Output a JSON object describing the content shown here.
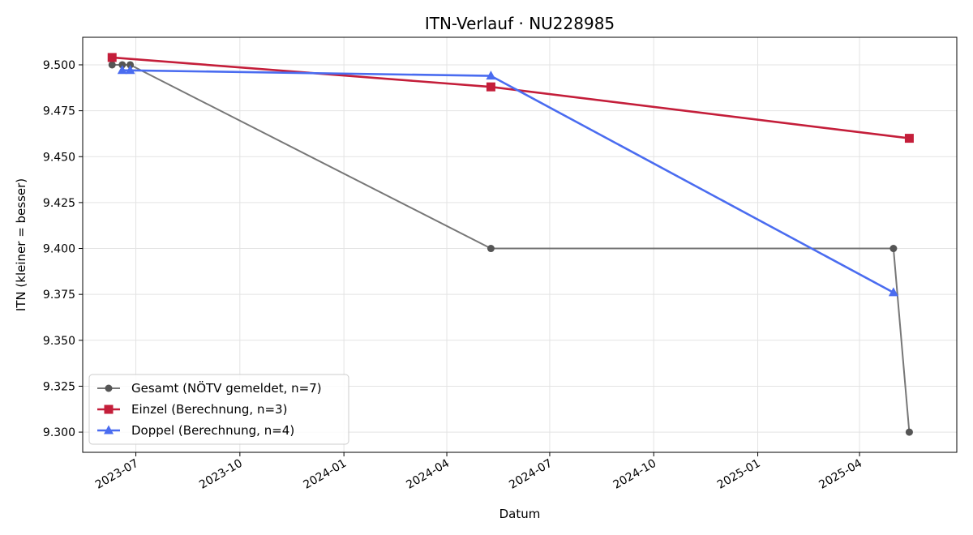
{
  "chart_data": {
    "type": "line",
    "title": "ITN-Verlauf · NU228985",
    "xlabel": "Datum",
    "ylabel": "ITN  (kleiner = besser)",
    "x_type": "date",
    "xlim": [
      "2023-05-15",
      "2025-06-26"
    ],
    "ylim": [
      9.289,
      9.515
    ],
    "x_ticks": [
      "2023-07",
      "2023-10",
      "2024-01",
      "2024-04",
      "2024-07",
      "2024-10",
      "2025-01",
      "2025-04"
    ],
    "y_ticks": [
      "9.300",
      "9.325",
      "9.350",
      "9.375",
      "9.400",
      "9.425",
      "9.450",
      "9.475",
      "9.500"
    ],
    "grid": true,
    "legend_position": "lower-left",
    "series": [
      {
        "name": "Gesamt (NÖTV gemeldet, n=7)",
        "color": "#555555",
        "marker": "circle",
        "points": [
          {
            "x": "2023-06-10",
            "y": 9.5
          },
          {
            "x": "2023-06-19",
            "y": 9.5
          },
          {
            "x": "2023-06-26",
            "y": 9.5
          },
          {
            "x": "2024-05-10",
            "y": 9.4
          },
          {
            "x": "2025-05-01",
            "y": 9.4
          },
          {
            "x": "2025-05-15",
            "y": 9.3
          }
        ]
      },
      {
        "name": "Einzel (Berechnung, n=3)",
        "color": "#c41e3a",
        "marker": "square",
        "points": [
          {
            "x": "2023-06-10",
            "y": 9.504
          },
          {
            "x": "2024-05-10",
            "y": 9.488
          },
          {
            "x": "2025-05-15",
            "y": 9.46
          }
        ]
      },
      {
        "name": "Doppel (Berechnung, n=4)",
        "color": "#4a6cf0",
        "marker": "triangle",
        "points": [
          {
            "x": "2023-06-19",
            "y": 9.497
          },
          {
            "x": "2023-06-26",
            "y": 9.497
          },
          {
            "x": "2024-05-10",
            "y": 9.494
          },
          {
            "x": "2025-05-01",
            "y": 9.376
          }
        ]
      }
    ]
  }
}
